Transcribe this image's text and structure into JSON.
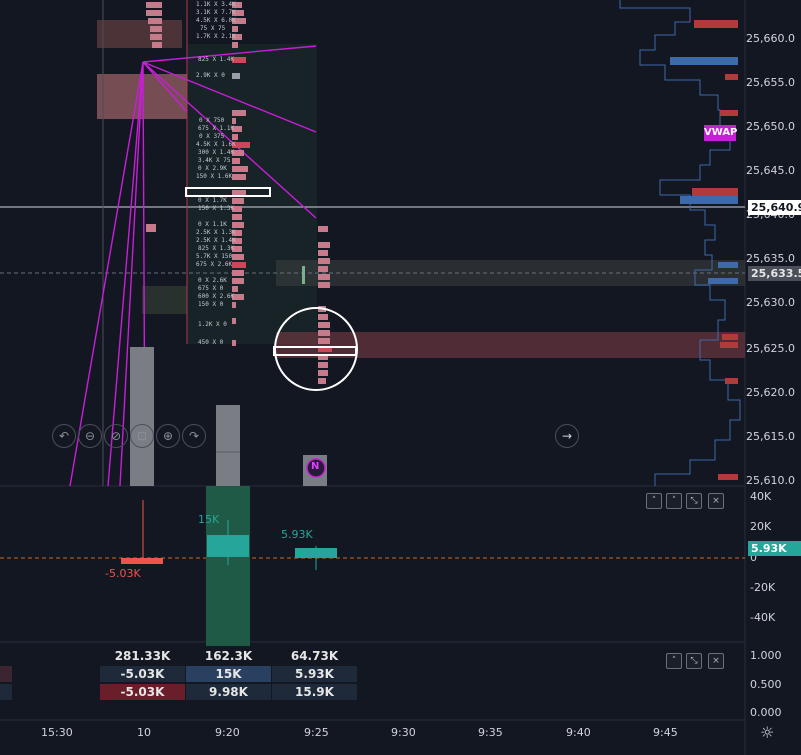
{
  "price_axis": {
    "labels": [
      "25,660.0",
      "25,655.0",
      "25,650.0",
      "25,645.0",
      "25,640.0",
      "25,635.0",
      "25,630.0",
      "25,625.0",
      "25,620.0",
      "25,615.0",
      "25,610.0"
    ],
    "current_price": "25,640.9",
    "reference_price": "25,633.5",
    "vwap_label": "VWAP"
  },
  "delta_axis": {
    "labels": [
      "40K",
      "20K",
      "0",
      "-20K",
      "-40K"
    ],
    "current_value": "5.93K"
  },
  "lower_axis": {
    "labels": [
      "1.000",
      "0.500",
      "0.000"
    ]
  },
  "delta_bars": {
    "labels": [
      "-5.03K",
      "15K",
      "5.93K"
    ]
  },
  "volume_table": {
    "rows": [
      [
        "281.33K",
        "162.3K",
        "64.73K"
      ],
      [
        "-5.03K",
        "15K",
        "5.93K"
      ],
      [
        "-5.03K",
        "9.98K",
        "15.9K"
      ]
    ]
  },
  "time_axis": {
    "labels": [
      "15:30",
      "10",
      "9:20",
      "9:25",
      "9:30",
      "9:35",
      "9:40",
      "9:45"
    ]
  },
  "footprint_text": [
    "1.1K X 3.4K",
    "3.1K X 7.7K",
    "4.5K X 6.0K",
    "75 X 75",
    "1.7K X 2.1K",
    "825 X 1.4K",
    "2.9K X 0",
    "0 X 750",
    "675 X 1.1K",
    "0 X 375",
    "4.5K X 1.6K",
    "300 X 1.4K",
    "3.4K X 75",
    "0 X 2.9K",
    "150 X 1.6K",
    "0 X 1.7K",
    "150 X 1.3K",
    "0 X 1.1K",
    "2.5K X 1.3K",
    "2.5K X 1.4K",
    "825 X 1.3K",
    "5.7K X 150",
    "675 X 2.6K",
    "0 X 2.6K",
    "675 X 0",
    "600 X 2.6K",
    "150 X 0",
    "1.2K X 0",
    "450 X 0"
  ],
  "marker": {
    "label": "N"
  },
  "colors": {
    "background": "#131722",
    "bull": "#26a69a",
    "bear": "#ef5350",
    "vwap": "#c81ed8",
    "profile_blue": "#3d6aa8",
    "profile_red": "#b23a3a"
  },
  "icons": [
    "undo-icon",
    "zoom-out-icon",
    "zoom-reset-icon",
    "fit-icon",
    "zoom-in-icon",
    "redo-icon",
    "scroll-right-icon",
    "chevron-up-icon",
    "chevron-down-icon",
    "collapse-icon",
    "close-icon",
    "settings-icon"
  ]
}
